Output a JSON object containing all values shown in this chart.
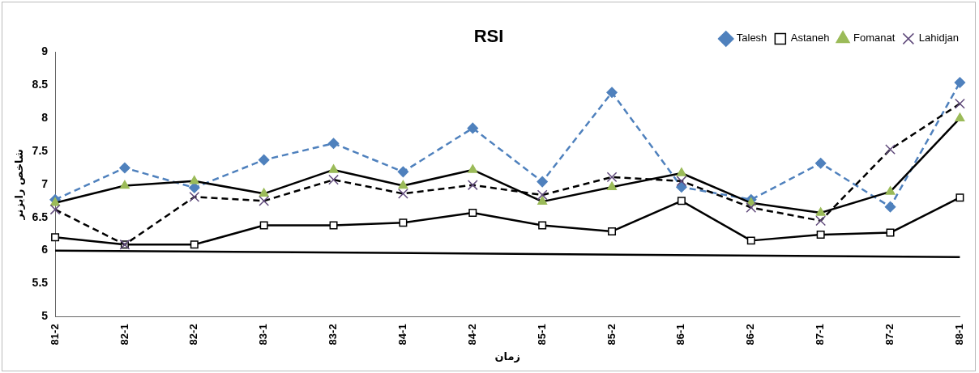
{
  "chart_data": {
    "type": "line",
    "title": "RSI",
    "xlabel": "زمان",
    "ylabel": "شاخص رایزنر",
    "categories": [
      "81-2",
      "82-1",
      "82-2",
      "83-1",
      "83-2",
      "84-1",
      "84-2",
      "85-1",
      "85-2",
      "86-1",
      "86-2",
      "87-1",
      "87-2",
      "88-1"
    ],
    "ylim": [
      5,
      9
    ],
    "yticks": [
      5,
      5.5,
      6,
      6.5,
      7,
      7.5,
      8,
      8.5,
      9
    ],
    "grid": false,
    "legend": "top right",
    "series": [
      {
        "name": "Talesh",
        "color": "#4f81bd",
        "marker": "diamond",
        "line_style": "dashed",
        "values": [
          6.77,
          7.25,
          6.95,
          7.37,
          7.62,
          7.19,
          7.85,
          7.04,
          8.39,
          6.96,
          6.77,
          7.32,
          6.66,
          8.54
        ]
      },
      {
        "name": "Astaneh",
        "color": "#000000",
        "marker": "square",
        "line_style": "solid",
        "values": [
          6.2,
          6.09,
          6.09,
          6.38,
          6.38,
          6.42,
          6.57,
          6.38,
          6.29,
          6.75,
          6.15,
          6.24,
          6.27,
          6.8
        ]
      },
      {
        "name": "Fomanat",
        "color": "#9bbb59",
        "marker": "triangle",
        "line_style": "solid",
        "values": [
          6.72,
          6.98,
          7.05,
          6.86,
          7.22,
          6.98,
          7.22,
          6.74,
          6.96,
          7.17,
          6.72,
          6.57,
          6.89,
          8.0
        ]
      },
      {
        "name": "Lahidjan",
        "color": "#604a7b",
        "marker": "cross",
        "line_style": "dashed",
        "values": [
          6.62,
          6.09,
          6.81,
          6.75,
          7.07,
          6.86,
          6.99,
          6.84,
          7.11,
          7.05,
          6.65,
          6.45,
          7.53,
          8.22
        ]
      },
      {
        "color": "#000000",
        "marker": "none",
        "line_style": "solid",
        "values": [
          6.0,
          null,
          null,
          null,
          null,
          null,
          null,
          null,
          null,
          null,
          null,
          null,
          null,
          5.9
        ]
      }
    ]
  }
}
